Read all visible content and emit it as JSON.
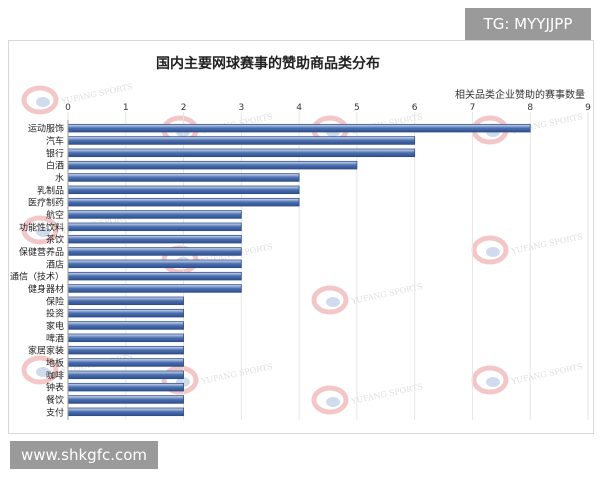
{
  "overlays": {
    "top_badge": "TG: MYYJJPP",
    "bottom_badge": "www.shkgfc.com"
  },
  "watermark_text": "YUFANG SPORTS",
  "colors": {
    "bar_fill": "#4a6fb0",
    "bar_fill_light": "#d6e0f2",
    "bar_stroke": "#2f4f8a",
    "badge_bg": "#9a9a9a"
  },
  "chart_data": {
    "type": "bar",
    "orientation": "horizontal",
    "title": "国内主要网球赛事的赞助商品类分布",
    "legend": "相关品类企业赞助的赛事数量",
    "legend_position": "top-right",
    "xlim": [
      0,
      9
    ],
    "xticks": [
      "0",
      "1",
      "2",
      "3",
      "4",
      "5",
      "6",
      "7",
      "8",
      "9"
    ],
    "grid": true,
    "categories": [
      "运动服饰",
      "汽车",
      "银行",
      "白酒",
      "水",
      "乳制品",
      "医疗制药",
      "航空",
      "功能性饮料",
      "茶饮",
      "保健营养品",
      "酒店",
      "通信（技术）",
      "健身器材",
      "保险",
      "投资",
      "家电",
      "啤酒",
      "家居家装",
      "地板",
      "咖啡",
      "钟表",
      "餐饮",
      "支付"
    ],
    "values": [
      8,
      6,
      6,
      5,
      4,
      4,
      4,
      3,
      3,
      3,
      3,
      3,
      3,
      3,
      2,
      2,
      2,
      2,
      2,
      2,
      2,
      2,
      2,
      2
    ]
  }
}
